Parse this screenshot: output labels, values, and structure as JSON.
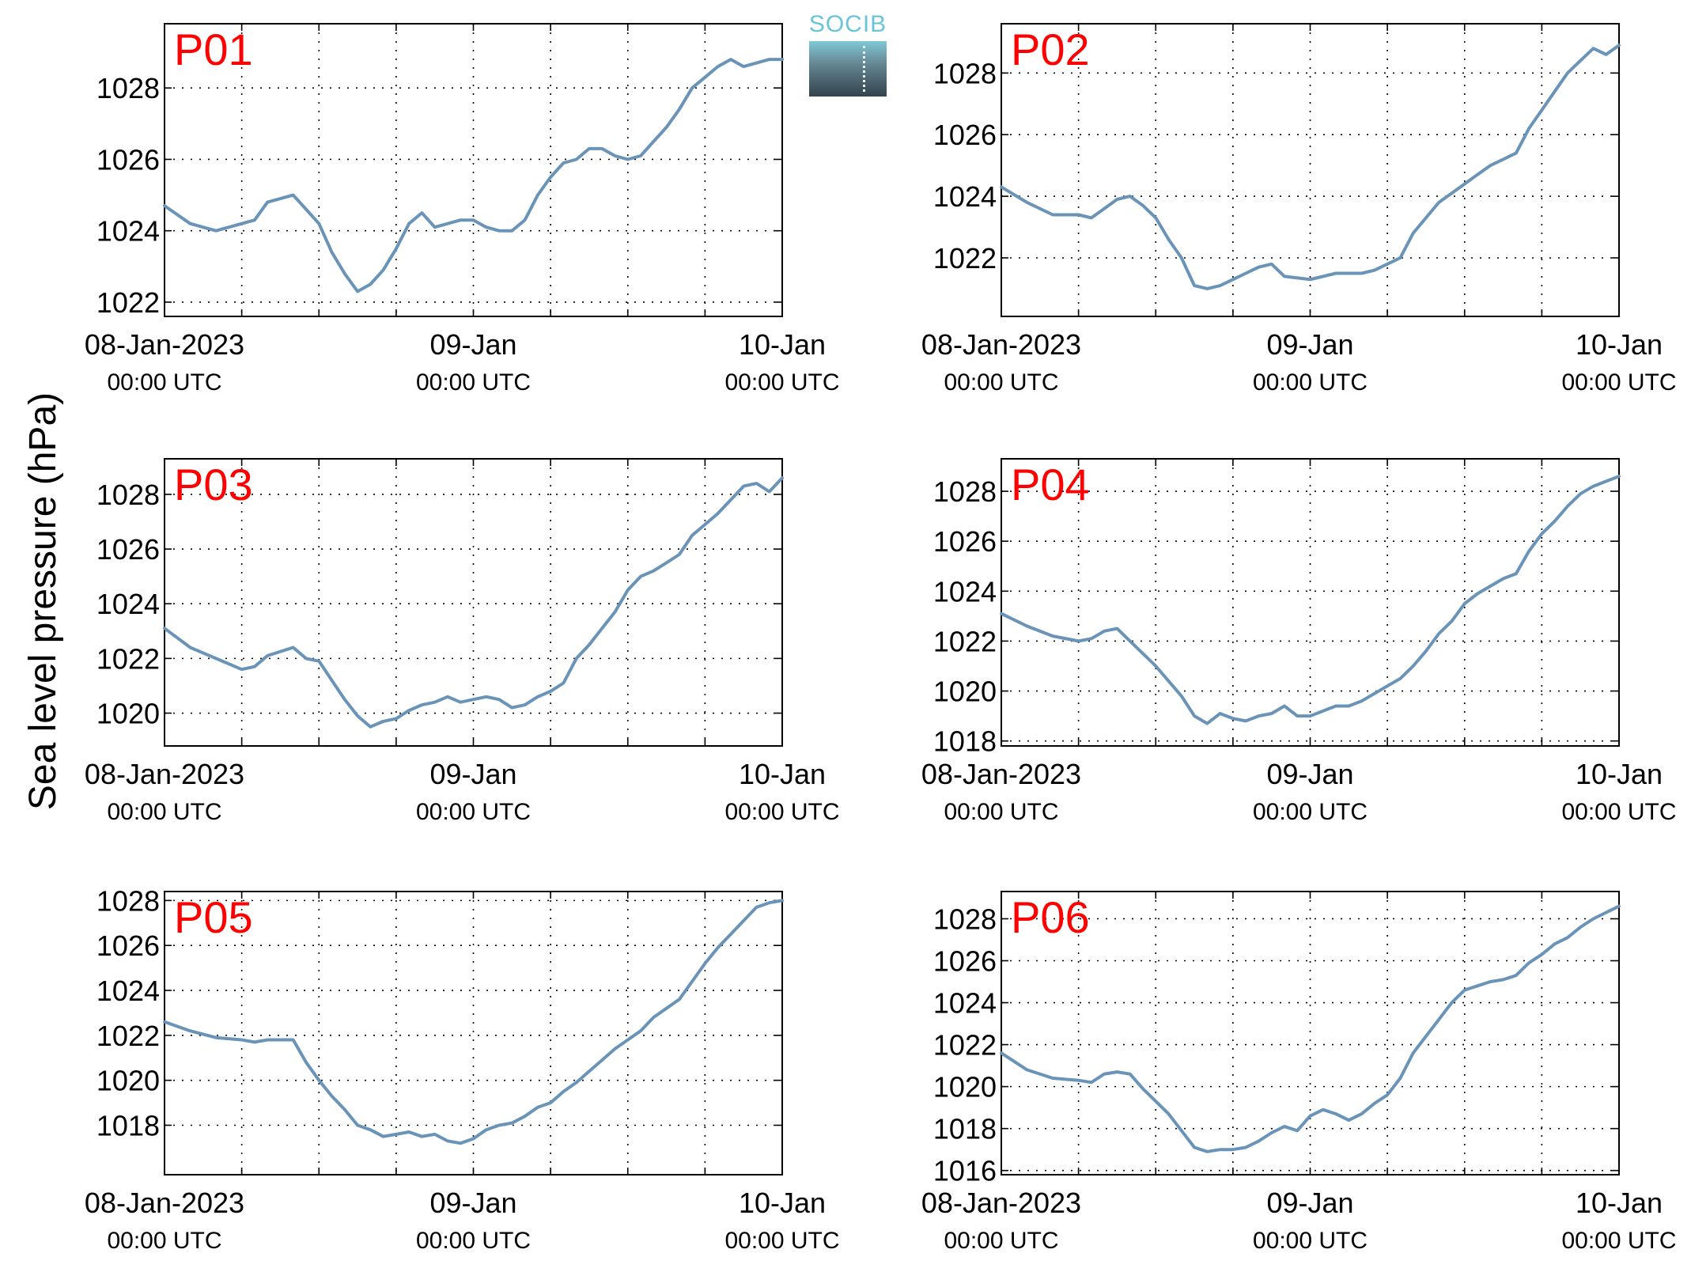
{
  "figure": {
    "ylabel": "Sea level pressure (hPa)",
    "logo_text": "SOCIB",
    "line_color": "#6a93b8",
    "label_color": "#ff0000"
  },
  "chart_data": [
    {
      "type": "line",
      "title": "P01",
      "x_ticks": [
        {
          "day": 0,
          "date": "08-Jan-2023",
          "time": "00:00 UTC"
        },
        {
          "day": 1,
          "date": "09-Jan",
          "time": "00:00 UTC"
        },
        {
          "day": 2,
          "date": "10-Jan",
          "time": "00:00 UTC"
        }
      ],
      "xlim": [
        0,
        2
      ],
      "ylim": [
        1021.6,
        1029.8
      ],
      "y_ticks": [
        1022,
        1024,
        1026,
        1028
      ],
      "series": [
        {
          "x": [
            "08-Jan-2023 00:00",
            "08-Jan-2023 02:00",
            "08-Jan-2023 04:00",
            "08-Jan-2023 06:00",
            "08-Jan-2023 07:00",
            "08-Jan-2023 08:00",
            "08-Jan-2023 10:00",
            "08-Jan-2023 11:00",
            "08-Jan-2023 12:00",
            "08-Jan-2023 13:00",
            "08-Jan-2023 14:00",
            "08-Jan-2023 15:00",
            "08-Jan-2023 16:00",
            "08-Jan-2023 17:00",
            "08-Jan-2023 18:00",
            "08-Jan-2023 19:00",
            "08-Jan-2023 20:00",
            "08-Jan-2023 21:00",
            "08-Jan-2023 22:00",
            "08-Jan-2023 23:00",
            "09-Jan 00:00",
            "09-Jan 01:00",
            "09-Jan 02:00",
            "09-Jan 03:00",
            "09-Jan 04:00",
            "09-Jan 05:00",
            "09-Jan 06:00",
            "09-Jan 07:00",
            "09-Jan 08:00",
            "09-Jan 09:00",
            "09-Jan 10:00",
            "09-Jan 11:00",
            "09-Jan 12:00",
            "09-Jan 13:00",
            "09-Jan 14:00",
            "09-Jan 15:00",
            "09-Jan 16:00",
            "09-Jan 17:00",
            "09-Jan 18:00",
            "09-Jan 19:00",
            "09-Jan 20:00",
            "09-Jan 21:00",
            "09-Jan 22:00",
            "09-Jan 23:00",
            "10-Jan 00:00"
          ],
          "y": [
            1024.7,
            1024.2,
            1024.0,
            1024.2,
            1024.3,
            1024.8,
            1025.0,
            1024.6,
            1024.2,
            1023.4,
            1022.8,
            1022.3,
            1022.5,
            1022.9,
            1023.5,
            1024.2,
            1024.5,
            1024.1,
            1024.2,
            1024.3,
            1024.3,
            1024.1,
            1024.0,
            1024.0,
            1024.3,
            1025.0,
            1025.5,
            1025.9,
            1026.0,
            1026.3,
            1026.3,
            1026.1,
            1026.0,
            1026.1,
            1026.5,
            1026.9,
            1027.4,
            1028.0,
            1028.3,
            1028.6,
            1028.8,
            1028.6,
            1028.7,
            1028.8,
            1028.8
          ]
        }
      ]
    },
    {
      "type": "line",
      "title": "P02",
      "x_ticks": [
        {
          "day": 0,
          "date": "08-Jan-2023",
          "time": "00:00 UTC"
        },
        {
          "day": 1,
          "date": "09-Jan",
          "time": "00:00 UTC"
        },
        {
          "day": 2,
          "date": "10-Jan",
          "time": "00:00 UTC"
        }
      ],
      "xlim": [
        0,
        2
      ],
      "ylim": [
        1020.1,
        1029.6
      ],
      "y_ticks": [
        1022,
        1024,
        1026,
        1028
      ],
      "series": [
        {
          "x": [
            "08-Jan-2023 00:00",
            "08-Jan-2023 02:00",
            "08-Jan-2023 04:00",
            "08-Jan-2023 06:00",
            "08-Jan-2023 07:00",
            "08-Jan-2023 08:00",
            "08-Jan-2023 09:00",
            "08-Jan-2023 10:00",
            "08-Jan-2023 11:00",
            "08-Jan-2023 12:00",
            "08-Jan-2023 13:00",
            "08-Jan-2023 14:00",
            "08-Jan-2023 15:00",
            "08-Jan-2023 16:00",
            "08-Jan-2023 17:00",
            "08-Jan-2023 18:00",
            "08-Jan-2023 19:00",
            "08-Jan-2023 20:00",
            "08-Jan-2023 21:00",
            "08-Jan-2023 22:00",
            "09-Jan 00:00",
            "09-Jan 02:00",
            "09-Jan 03:00",
            "09-Jan 04:00",
            "09-Jan 05:00",
            "09-Jan 06:00",
            "09-Jan 07:00",
            "09-Jan 08:00",
            "09-Jan 09:00",
            "09-Jan 10:00",
            "09-Jan 11:00",
            "09-Jan 12:00",
            "09-Jan 13:00",
            "09-Jan 14:00",
            "09-Jan 15:00",
            "09-Jan 16:00",
            "09-Jan 17:00",
            "09-Jan 18:00",
            "09-Jan 19:00",
            "09-Jan 20:00",
            "09-Jan 21:00",
            "09-Jan 22:00",
            "09-Jan 23:00",
            "10-Jan 00:00"
          ],
          "y": [
            1024.3,
            1023.8,
            1023.4,
            1023.4,
            1023.3,
            1023.6,
            1023.9,
            1024.0,
            1023.7,
            1023.3,
            1022.6,
            1022.0,
            1021.1,
            1021.0,
            1021.1,
            1021.3,
            1021.5,
            1021.7,
            1021.8,
            1021.4,
            1021.3,
            1021.5,
            1021.5,
            1021.5,
            1021.6,
            1021.8,
            1022.0,
            1022.8,
            1023.3,
            1023.8,
            1024.1,
            1024.4,
            1024.7,
            1025.0,
            1025.2,
            1025.4,
            1026.2,
            1026.8,
            1027.4,
            1028.0,
            1028.4,
            1028.8,
            1028.6,
            1028.9
          ]
        }
      ]
    },
    {
      "type": "line",
      "title": "P03",
      "x_ticks": [
        {
          "day": 0,
          "date": "08-Jan-2023",
          "time": "00:00 UTC"
        },
        {
          "day": 1,
          "date": "09-Jan",
          "time": "00:00 UTC"
        },
        {
          "day": 2,
          "date": "10-Jan",
          "time": "00:00 UTC"
        }
      ],
      "xlim": [
        0,
        2
      ],
      "ylim": [
        1018.8,
        1029.3
      ],
      "y_ticks": [
        1020,
        1022,
        1024,
        1026,
        1028
      ],
      "series": [
        {
          "x": [
            "08-Jan-2023 00:00",
            "08-Jan-2023 02:00",
            "08-Jan-2023 04:00",
            "08-Jan-2023 06:00",
            "08-Jan-2023 07:00",
            "08-Jan-2023 08:00",
            "08-Jan-2023 10:00",
            "08-Jan-2023 11:00",
            "08-Jan-2023 12:00",
            "08-Jan-2023 13:00",
            "08-Jan-2023 14:00",
            "08-Jan-2023 15:00",
            "08-Jan-2023 16:00",
            "08-Jan-2023 17:00",
            "08-Jan-2023 18:00",
            "08-Jan-2023 19:00",
            "08-Jan-2023 20:00",
            "08-Jan-2023 21:00",
            "08-Jan-2023 22:00",
            "08-Jan-2023 23:00",
            "09-Jan 00:00",
            "09-Jan 01:00",
            "09-Jan 02:00",
            "09-Jan 03:00",
            "09-Jan 04:00",
            "09-Jan 05:00",
            "09-Jan 06:00",
            "09-Jan 07:00",
            "09-Jan 08:00",
            "09-Jan 09:00",
            "09-Jan 10:00",
            "09-Jan 11:00",
            "09-Jan 12:00",
            "09-Jan 13:00",
            "09-Jan 14:00",
            "09-Jan 15:00",
            "09-Jan 16:00",
            "09-Jan 17:00",
            "09-Jan 18:00",
            "09-Jan 19:00",
            "09-Jan 20:00",
            "09-Jan 21:00",
            "09-Jan 22:00",
            "09-Jan 23:00",
            "10-Jan 00:00"
          ],
          "y": [
            1023.1,
            1022.4,
            1022.0,
            1021.6,
            1021.7,
            1022.1,
            1022.4,
            1022.0,
            1021.9,
            1021.2,
            1020.5,
            1019.9,
            1019.5,
            1019.7,
            1019.8,
            1020.1,
            1020.3,
            1020.4,
            1020.6,
            1020.4,
            1020.5,
            1020.6,
            1020.5,
            1020.2,
            1020.3,
            1020.6,
            1020.8,
            1021.1,
            1022.0,
            1022.5,
            1023.1,
            1023.7,
            1024.5,
            1025.0,
            1025.2,
            1025.5,
            1025.8,
            1026.5,
            1026.9,
            1027.3,
            1027.8,
            1028.3,
            1028.4,
            1028.1,
            1028.6
          ]
        }
      ]
    },
    {
      "type": "line",
      "title": "P04",
      "x_ticks": [
        {
          "day": 0,
          "date": "08-Jan-2023",
          "time": "00:00 UTC"
        },
        {
          "day": 1,
          "date": "09-Jan",
          "time": "00:00 UTC"
        },
        {
          "day": 2,
          "date": "10-Jan",
          "time": "00:00 UTC"
        }
      ],
      "xlim": [
        0,
        2
      ],
      "ylim": [
        1017.8,
        1029.3
      ],
      "y_ticks": [
        1018,
        1020,
        1022,
        1024,
        1026,
        1028
      ],
      "series": [
        {
          "x": [
            "08-Jan-2023 00:00",
            "08-Jan-2023 02:00",
            "08-Jan-2023 04:00",
            "08-Jan-2023 06:00",
            "08-Jan-2023 07:00",
            "08-Jan-2023 08:00",
            "08-Jan-2023 09:00",
            "08-Jan-2023 10:00",
            "08-Jan-2023 11:00",
            "08-Jan-2023 12:00",
            "08-Jan-2023 13:00",
            "08-Jan-2023 14:00",
            "08-Jan-2023 15:00",
            "08-Jan-2023 16:00",
            "08-Jan-2023 17:00",
            "08-Jan-2023 18:00",
            "08-Jan-2023 19:00",
            "08-Jan-2023 20:00",
            "08-Jan-2023 21:00",
            "08-Jan-2023 22:00",
            "08-Jan-2023 23:00",
            "09-Jan 00:00",
            "09-Jan 01:00",
            "09-Jan 02:00",
            "09-Jan 03:00",
            "09-Jan 04:00",
            "09-Jan 05:00",
            "09-Jan 06:00",
            "09-Jan 07:00",
            "09-Jan 08:00",
            "09-Jan 09:00",
            "09-Jan 10:00",
            "09-Jan 11:00",
            "09-Jan 12:00",
            "09-Jan 13:00",
            "09-Jan 14:00",
            "09-Jan 15:00",
            "09-Jan 16:00",
            "09-Jan 17:00",
            "09-Jan 18:00",
            "09-Jan 19:00",
            "09-Jan 20:00",
            "09-Jan 21:00",
            "09-Jan 22:00",
            "09-Jan 23:00",
            "10-Jan 00:00"
          ],
          "y": [
            1023.1,
            1022.6,
            1022.2,
            1022.0,
            1022.1,
            1022.4,
            1022.5,
            1022.0,
            1021.5,
            1021.0,
            1020.4,
            1019.8,
            1019.0,
            1018.7,
            1019.1,
            1018.9,
            1018.8,
            1019.0,
            1019.1,
            1019.4,
            1019.0,
            1019.0,
            1019.2,
            1019.4,
            1019.4,
            1019.6,
            1019.9,
            1020.2,
            1020.5,
            1021.0,
            1021.6,
            1022.3,
            1022.8,
            1023.5,
            1023.9,
            1024.2,
            1024.5,
            1024.7,
            1025.6,
            1026.3,
            1026.8,
            1027.4,
            1027.9,
            1028.2,
            1028.4,
            1028.6
          ]
        }
      ]
    },
    {
      "type": "line",
      "title": "P05",
      "x_ticks": [
        {
          "day": 0,
          "date": "08-Jan-2023",
          "time": "00:00 UTC"
        },
        {
          "day": 1,
          "date": "09-Jan",
          "time": "00:00 UTC"
        },
        {
          "day": 2,
          "date": "10-Jan",
          "time": "00:00 UTC"
        }
      ],
      "xlim": [
        0,
        2
      ],
      "ylim": [
        1015.8,
        1028.4
      ],
      "y_ticks": [
        1018,
        1020,
        1022,
        1024,
        1026,
        1028
      ],
      "series": [
        {
          "x": [
            "08-Jan-2023 00:00",
            "08-Jan-2023 02:00",
            "08-Jan-2023 04:00",
            "08-Jan-2023 06:00",
            "08-Jan-2023 07:00",
            "08-Jan-2023 08:00",
            "08-Jan-2023 10:00",
            "08-Jan-2023 11:00",
            "08-Jan-2023 12:00",
            "08-Jan-2023 13:00",
            "08-Jan-2023 14:00",
            "08-Jan-2023 15:00",
            "08-Jan-2023 16:00",
            "08-Jan-2023 17:00",
            "08-Jan-2023 18:00",
            "08-Jan-2023 19:00",
            "08-Jan-2023 20:00",
            "08-Jan-2023 21:00",
            "08-Jan-2023 22:00",
            "08-Jan-2023 23:00",
            "09-Jan 00:00",
            "09-Jan 01:00",
            "09-Jan 02:00",
            "09-Jan 03:00",
            "09-Jan 04:00",
            "09-Jan 05:00",
            "09-Jan 06:00",
            "09-Jan 07:00",
            "09-Jan 08:00",
            "09-Jan 09:00",
            "09-Jan 10:00",
            "09-Jan 11:00",
            "09-Jan 12:00",
            "09-Jan 13:00",
            "09-Jan 14:00",
            "09-Jan 15:00",
            "09-Jan 16:00",
            "09-Jan 17:00",
            "09-Jan 18:00",
            "09-Jan 19:00",
            "09-Jan 20:00",
            "09-Jan 21:00",
            "09-Jan 22:00",
            "09-Jan 23:00",
            "10-Jan 00:00"
          ],
          "y": [
            1022.6,
            1022.2,
            1021.9,
            1021.8,
            1021.7,
            1021.8,
            1021.8,
            1020.8,
            1020.0,
            1019.3,
            1018.7,
            1018.0,
            1017.8,
            1017.5,
            1017.6,
            1017.7,
            1017.5,
            1017.6,
            1017.3,
            1017.2,
            1017.4,
            1017.8,
            1018.0,
            1018.1,
            1018.4,
            1018.8,
            1019.0,
            1019.5,
            1019.9,
            1020.4,
            1020.9,
            1021.4,
            1021.8,
            1022.2,
            1022.8,
            1023.2,
            1023.6,
            1024.4,
            1025.2,
            1025.9,
            1026.5,
            1027.1,
            1027.7,
            1027.9,
            1028.0
          ]
        }
      ]
    },
    {
      "type": "line",
      "title": "P06",
      "x_ticks": [
        {
          "day": 0,
          "date": "08-Jan-2023",
          "time": "00:00 UTC"
        },
        {
          "day": 1,
          "date": "09-Jan",
          "time": "00:00 UTC"
        },
        {
          "day": 2,
          "date": "10-Jan",
          "time": "00:00 UTC"
        }
      ],
      "xlim": [
        0,
        2
      ],
      "ylim": [
        1015.8,
        1029.3
      ],
      "y_ticks": [
        1016,
        1018,
        1020,
        1022,
        1024,
        1026,
        1028
      ],
      "series": [
        {
          "x": [
            "08-Jan-2023 00:00",
            "08-Jan-2023 02:00",
            "08-Jan-2023 04:00",
            "08-Jan-2023 06:00",
            "08-Jan-2023 07:00",
            "08-Jan-2023 08:00",
            "08-Jan-2023 09:00",
            "08-Jan-2023 10:00",
            "08-Jan-2023 11:00",
            "08-Jan-2023 12:00",
            "08-Jan-2023 13:00",
            "08-Jan-2023 14:00",
            "08-Jan-2023 15:00",
            "08-Jan-2023 16:00",
            "08-Jan-2023 17:00",
            "08-Jan-2023 18:00",
            "08-Jan-2023 19:00",
            "08-Jan-2023 20:00",
            "08-Jan-2023 21:00",
            "08-Jan-2023 22:00",
            "08-Jan-2023 23:00",
            "09-Jan 00:00",
            "09-Jan 01:00",
            "09-Jan 02:00",
            "09-Jan 03:00",
            "09-Jan 04:00",
            "09-Jan 05:00",
            "09-Jan 06:00",
            "09-Jan 07:00",
            "09-Jan 08:00",
            "09-Jan 09:00",
            "09-Jan 10:00",
            "09-Jan 11:00",
            "09-Jan 12:00",
            "09-Jan 13:00",
            "09-Jan 14:00",
            "09-Jan 15:00",
            "09-Jan 16:00",
            "09-Jan 17:00",
            "09-Jan 18:00",
            "09-Jan 19:00",
            "09-Jan 20:00",
            "09-Jan 21:00",
            "09-Jan 22:00",
            "09-Jan 23:00",
            "10-Jan 00:00"
          ],
          "y": [
            1021.6,
            1020.8,
            1020.4,
            1020.3,
            1020.2,
            1020.6,
            1020.7,
            1020.6,
            1019.9,
            1019.3,
            1018.7,
            1017.9,
            1017.1,
            1016.9,
            1017.0,
            1017.0,
            1017.1,
            1017.4,
            1017.8,
            1018.1,
            1017.9,
            1018.6,
            1018.9,
            1018.7,
            1018.4,
            1018.7,
            1019.2,
            1019.6,
            1020.4,
            1021.6,
            1022.4,
            1023.2,
            1024.0,
            1024.6,
            1024.8,
            1025.0,
            1025.1,
            1025.3,
            1025.9,
            1026.3,
            1026.8,
            1027.1,
            1027.6,
            1028.0,
            1028.3,
            1028.6
          ]
        }
      ]
    }
  ]
}
